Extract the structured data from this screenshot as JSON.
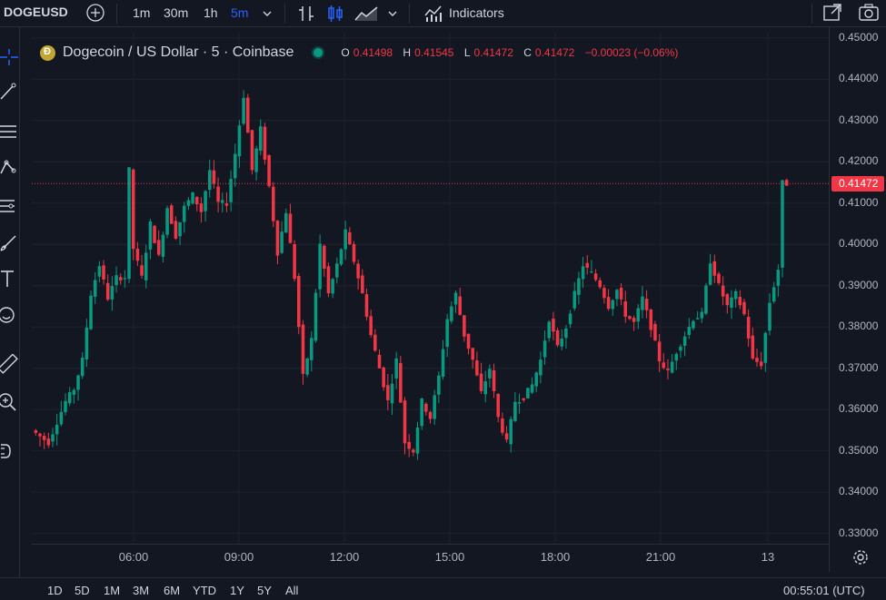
{
  "toolbar": {
    "symbol": "DOGEUSD",
    "intervals": [
      "1m",
      "30m",
      "1h",
      "5m"
    ],
    "active_interval": "5m",
    "indicators_label": "Indicators"
  },
  "legend": {
    "title": "Dogecoin / US Dollar · 5 · Coinbase",
    "open_key": "O",
    "open": "0.41498",
    "high_key": "H",
    "high": "0.41545",
    "low_key": "L",
    "low": "0.41472",
    "close_key": "C",
    "close": "0.41472",
    "change": "−0.00023 (−0.06%)"
  },
  "colors": {
    "up": "#089981",
    "down": "#f23645",
    "background": "#131722",
    "grid": "#1e222d",
    "accent": "#2962ff"
  },
  "price_axis": {
    "ticks": [
      "0.45000",
      "0.44000",
      "0.43000",
      "0.42000",
      "0.41000",
      "0.40000",
      "0.39000",
      "0.38000",
      "0.37000",
      "0.36000",
      "0.35000",
      "0.34000",
      "0.33000"
    ],
    "current_price": "0.41472"
  },
  "time_axis": {
    "ticks": [
      "06:00",
      "09:00",
      "12:00",
      "15:00",
      "18:00",
      "21:00",
      "13"
    ]
  },
  "bottom": {
    "ranges": [
      "1D",
      "5D",
      "1M",
      "3M",
      "6M",
      "YTD",
      "1Y",
      "5Y",
      "All"
    ],
    "clock": "00:55:01 (UTC)"
  },
  "chart_data": {
    "type": "candlestick",
    "x_start": "02:45",
    "x_end": "13 01:00",
    "interval_minutes": 5,
    "ylim": [
      0.3275,
      0.4515
    ],
    "path_points": [
      [
        0,
        0.355
      ],
      [
        4,
        0.352
      ],
      [
        8,
        0.362
      ],
      [
        10,
        0.365
      ],
      [
        12,
        0.372
      ],
      [
        14,
        0.388
      ],
      [
        16,
        0.395
      ],
      [
        18,
        0.387
      ],
      [
        20,
        0.392
      ],
      [
        22,
        0.392
      ],
      [
        23,
        0.418
      ],
      [
        24,
        0.399
      ],
      [
        26,
        0.392
      ],
      [
        28,
        0.405
      ],
      [
        30,
        0.397
      ],
      [
        32,
        0.409
      ],
      [
        34,
        0.402
      ],
      [
        36,
        0.409
      ],
      [
        38,
        0.412
      ],
      [
        40,
        0.408
      ],
      [
        42,
        0.418
      ],
      [
        44,
        0.41
      ],
      [
        46,
        0.41
      ],
      [
        48,
        0.422
      ],
      [
        50,
        0.436
      ],
      [
        52,
        0.418
      ],
      [
        54,
        0.428
      ],
      [
        56,
        0.414
      ],
      [
        58,
        0.398
      ],
      [
        60,
        0.408
      ],
      [
        62,
        0.392
      ],
      [
        64,
        0.368
      ],
      [
        66,
        0.377
      ],
      [
        68,
        0.4
      ],
      [
        70,
        0.388
      ],
      [
        72,
        0.395
      ],
      [
        74,
        0.403
      ],
      [
        76,
        0.396
      ],
      [
        78,
        0.388
      ],
      [
        80,
        0.378
      ],
      [
        82,
        0.37
      ],
      [
        84,
        0.362
      ],
      [
        86,
        0.372
      ],
      [
        88,
        0.352
      ],
      [
        90,
        0.35
      ],
      [
        92,
        0.362
      ],
      [
        94,
        0.358
      ],
      [
        96,
        0.368
      ],
      [
        98,
        0.382
      ],
      [
        100,
        0.388
      ],
      [
        102,
        0.378
      ],
      [
        104,
        0.372
      ],
      [
        106,
        0.364
      ],
      [
        108,
        0.37
      ],
      [
        110,
        0.358
      ],
      [
        112,
        0.352
      ],
      [
        114,
        0.362
      ],
      [
        116,
        0.363
      ],
      [
        118,
        0.366
      ],
      [
        120,
        0.372
      ],
      [
        122,
        0.382
      ],
      [
        124,
        0.375
      ],
      [
        126,
        0.38
      ],
      [
        128,
        0.388
      ],
      [
        130,
        0.395
      ],
      [
        132,
        0.393
      ],
      [
        134,
        0.39
      ],
      [
        136,
        0.385
      ],
      [
        138,
        0.389
      ],
      [
        140,
        0.383
      ],
      [
        142,
        0.381
      ],
      [
        144,
        0.387
      ],
      [
        146,
        0.38
      ],
      [
        148,
        0.372
      ],
      [
        150,
        0.369
      ],
      [
        152,
        0.374
      ],
      [
        154,
        0.378
      ],
      [
        156,
        0.382
      ],
      [
        158,
        0.383
      ],
      [
        160,
        0.396
      ],
      [
        162,
        0.39
      ],
      [
        164,
        0.385
      ],
      [
        166,
        0.388
      ],
      [
        168,
        0.383
      ],
      [
        170,
        0.372
      ],
      [
        172,
        0.371
      ],
      [
        174,
        0.386
      ],
      [
        176,
        0.394
      ],
      [
        177,
        0.4149
      ],
      [
        178,
        0.4147
      ]
    ],
    "current_price": 0.41472
  }
}
